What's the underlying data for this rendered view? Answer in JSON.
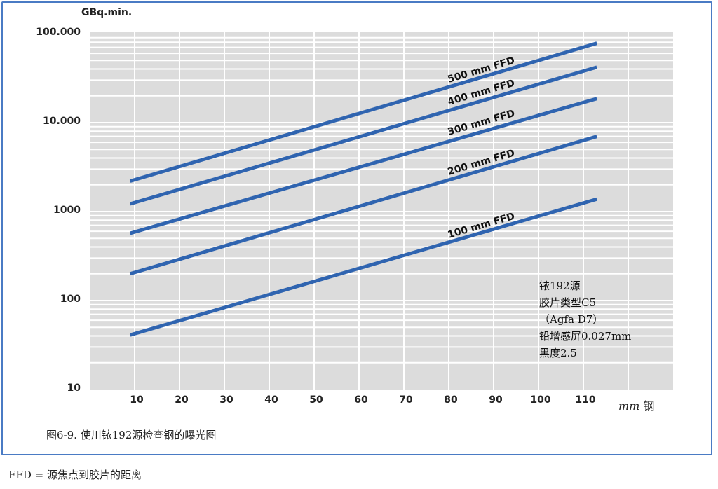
{
  "chart_data": {
    "type": "line",
    "title": "图6-9. 使川铱192源检查钢的曝光图",
    "xlabel": "mm 钢",
    "ylabel": "GBq.min.",
    "yscale": "log",
    "ylim": [
      10,
      100000
    ],
    "xlim": [
      0,
      130
    ],
    "grid": true,
    "y_ticks": [
      "100.000",
      "10.000",
      "1000",
      "100",
      "10"
    ],
    "y_tick_values": [
      100000,
      10000,
      1000,
      100,
      10
    ],
    "x_ticks": [
      "10",
      "20",
      "30",
      "40",
      "50",
      "60",
      "70",
      "80",
      "90",
      "100",
      "110"
    ],
    "x_tick_values": [
      10,
      20,
      30,
      40,
      50,
      60,
      70,
      80,
      90,
      100,
      110
    ],
    "series": [
      {
        "name": "500 mm FFD",
        "x": [
          9,
          113
        ],
        "values": [
          2200,
          78000
        ]
      },
      {
        "name": "400 mm FFD",
        "x": [
          9,
          113
        ],
        "values": [
          1220,
          42000
        ]
      },
      {
        "name": "300 mm FFD",
        "x": [
          9,
          113
        ],
        "values": [
          570,
          18600
        ]
      },
      {
        "name": "200 mm FFD",
        "x": [
          9,
          113
        ],
        "values": [
          200,
          7000
        ]
      },
      {
        "name": "100 mm FFD",
        "x": [
          9,
          113
        ],
        "values": [
          41,
          1380
        ]
      }
    ],
    "annotations": [
      "铱192源",
      "胶片类型C5",
      "（Agfa D7）",
      "铅增感屏0.027mm",
      "黑度2.5"
    ],
    "legend_position": "inline labels on lines"
  },
  "axis": {
    "y_unit": "GBq.min.",
    "x_unit_italic": "mm",
    "x_unit_suffix": " 钢"
  },
  "info_box": {
    "line1": "铱192源",
    "line2": "胶片类型C5",
    "line3": "（Agfa D7）",
    "line4": "铅增感屏0.027mm",
    "line5": "黑度2.5"
  },
  "caption": "图6-9. 使川铱192源检查钢的曝光图",
  "footnote": "FFD = 源焦点到胶片的距离",
  "colors": {
    "line": "#2f64b0",
    "plot_bg": "#dcdcdc",
    "grid": "#ffffff",
    "frame": "#4a7bc4"
  }
}
